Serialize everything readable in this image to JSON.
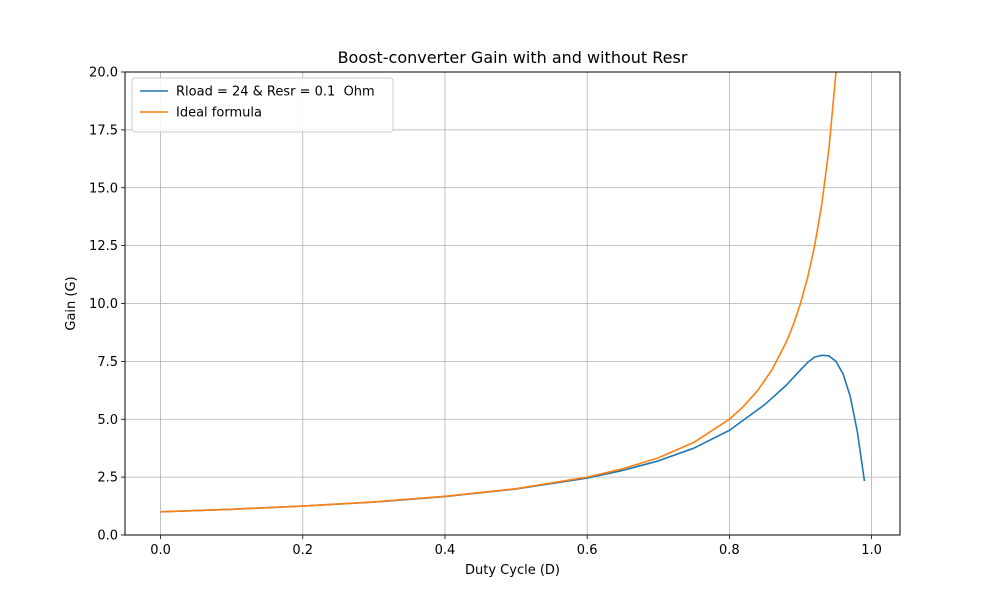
{
  "chart_data": {
    "type": "line",
    "title": "Boost-converter Gain with and without Resr",
    "xlabel": "Duty Cycle (D)",
    "ylabel": "Gain (G)",
    "xlim": [
      -0.05,
      1.04
    ],
    "ylim": [
      0,
      20
    ],
    "x_ticks": [
      0.0,
      0.2,
      0.4,
      0.6,
      0.8,
      1.0
    ],
    "x_tick_labels": [
      "0.0",
      "0.2",
      "0.4",
      "0.6",
      "0.8",
      "1.0"
    ],
    "y_ticks": [
      0,
      2.5,
      5,
      7.5,
      10,
      12.5,
      15,
      17.5,
      20
    ],
    "y_tick_labels": [
      "0.0",
      "2.5",
      "5.0",
      "7.5",
      "10.0",
      "12.5",
      "15.0",
      "17.5",
      "20.0"
    ],
    "grid": true,
    "legend": {
      "placement": "top-left"
    },
    "series": [
      {
        "name": "Rload = 24 & Resr = 0.1  Ohm",
        "color": "#1f77b4",
        "x": [
          0.0,
          0.1,
          0.2,
          0.3,
          0.4,
          0.5,
          0.6,
          0.65,
          0.7,
          0.75,
          0.8,
          0.85,
          0.88,
          0.9,
          0.91,
          0.92,
          0.93,
          0.94,
          0.95,
          0.96,
          0.97,
          0.98,
          0.99
        ],
        "y": [
          1.0,
          1.11,
          1.25,
          1.42,
          1.66,
          1.99,
          2.46,
          2.79,
          3.2,
          3.75,
          4.52,
          5.64,
          6.47,
          7.13,
          7.45,
          7.69,
          7.76,
          7.74,
          7.5,
          6.95,
          5.99,
          4.46,
          2.33
        ]
      },
      {
        "name": "Ideal formula",
        "color": "#ff7f0e",
        "x": [
          0.0,
          0.1,
          0.2,
          0.3,
          0.4,
          0.5,
          0.6,
          0.65,
          0.7,
          0.75,
          0.8,
          0.82,
          0.84,
          0.86,
          0.88,
          0.89,
          0.9,
          0.91,
          0.92,
          0.93,
          0.94,
          0.95
        ],
        "y": [
          1.0,
          1.11,
          1.25,
          1.43,
          1.67,
          2.0,
          2.5,
          2.86,
          3.33,
          4.0,
          5.0,
          5.56,
          6.25,
          7.14,
          8.33,
          9.09,
          10.0,
          11.11,
          12.5,
          14.29,
          16.67,
          20.0
        ]
      }
    ]
  }
}
